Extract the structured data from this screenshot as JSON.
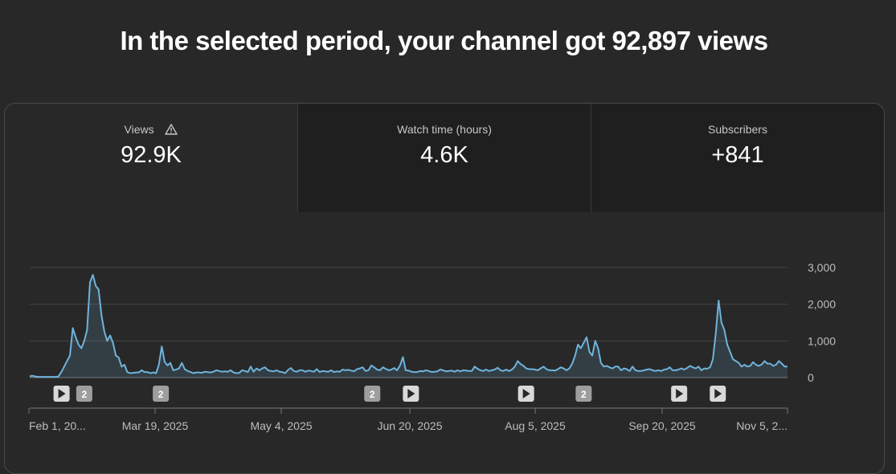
{
  "headline": "In the selected period, your channel got 92,897 views",
  "tabs": [
    {
      "label": "Views",
      "value": "92.9K",
      "active": true,
      "icon": "warning-icon"
    },
    {
      "label": "Watch time (hours)",
      "value": "4.6K",
      "active": false
    },
    {
      "label": "Subscribers",
      "value": "+841",
      "active": false
    }
  ],
  "chart_data": {
    "type": "area",
    "ylim": [
      0,
      3000
    ],
    "y_ticks": [
      "3,000",
      "2,000",
      "1,000",
      "0"
    ],
    "x_ticks": [
      "Feb 1, 20...",
      "Mar 19, 2025",
      "May 4, 2025",
      "Jun 20, 2025",
      "Aug 5, 2025",
      "Sep 20, 2025",
      "Nov 5, 2..."
    ],
    "series": [
      {
        "color": "#6fb3dc",
        "values": [
          40,
          50,
          30,
          20,
          20,
          20,
          20,
          20,
          20,
          20,
          30,
          150,
          300,
          450,
          600,
          1350,
          1100,
          900,
          800,
          1000,
          1300,
          2600,
          2800,
          2500,
          2400,
          1700,
          1250,
          1000,
          1150,
          950,
          600,
          550,
          300,
          350,
          150,
          120,
          130,
          140,
          140,
          200,
          150,
          150,
          120,
          140,
          120,
          350,
          850,
          430,
          330,
          400,
          200,
          220,
          250,
          400,
          230,
          180,
          150,
          120,
          140,
          140,
          130,
          160,
          150,
          140,
          160,
          200,
          180,
          160,
          170,
          160,
          200,
          140,
          120,
          130,
          200,
          180,
          150,
          300,
          160,
          250,
          200,
          250,
          280,
          200,
          180,
          170,
          200,
          160,
          150,
          120,
          210,
          260,
          180,
          160,
          200,
          200,
          160,
          190,
          180,
          160,
          230,
          150,
          180,
          170,
          160,
          200,
          150,
          170,
          160,
          220,
          200,
          210,
          190,
          170,
          230,
          250,
          280,
          180,
          200,
          330,
          280,
          220,
          200,
          280,
          240,
          200,
          220,
          260,
          200,
          330,
          560,
          200,
          190,
          160,
          150,
          150,
          180,
          170,
          200,
          180,
          150,
          160,
          170,
          220,
          200,
          170,
          180,
          190,
          160,
          200,
          170,
          200,
          190,
          180,
          180,
          300,
          240,
          200,
          180,
          220,
          180,
          200,
          220,
          270,
          200,
          180,
          220,
          180,
          220,
          300,
          450,
          370,
          320,
          250,
          230,
          230,
          220,
          200,
          250,
          300,
          230,
          200,
          200,
          190,
          230,
          280,
          250,
          200,
          250,
          380,
          600,
          900,
          800,
          950,
          1100,
          700,
          600,
          1000,
          800,
          400,
          300,
          320,
          280,
          250,
          300,
          300,
          200,
          250,
          230,
          180,
          300,
          200,
          180,
          180,
          200,
          220,
          230,
          200,
          180,
          200,
          180,
          220,
          230,
          280,
          200,
          200,
          220,
          250,
          220,
          260,
          320,
          280,
          250,
          300,
          200,
          250,
          240,
          280,
          500,
          1200,
          2100,
          1500,
          1300,
          900,
          700,
          500,
          450,
          400,
          300,
          350,
          300,
          320,
          420,
          350,
          320,
          360,
          450,
          380,
          380,
          320,
          350,
          450,
          380,
          300,
          300
        ]
      }
    ],
    "annotations": [
      {
        "type": "play",
        "at": 0.042
      },
      {
        "type": "count",
        "label": "2",
        "at": 0.072
      },
      {
        "type": "count",
        "label": "2",
        "at": 0.173
      },
      {
        "type": "count",
        "label": "2",
        "at": 0.452
      },
      {
        "type": "play",
        "at": 0.503
      },
      {
        "type": "play",
        "at": 0.655
      },
      {
        "type": "count",
        "label": "2",
        "at": 0.731
      },
      {
        "type": "play",
        "at": 0.857
      },
      {
        "type": "play",
        "at": 0.908
      }
    ]
  }
}
